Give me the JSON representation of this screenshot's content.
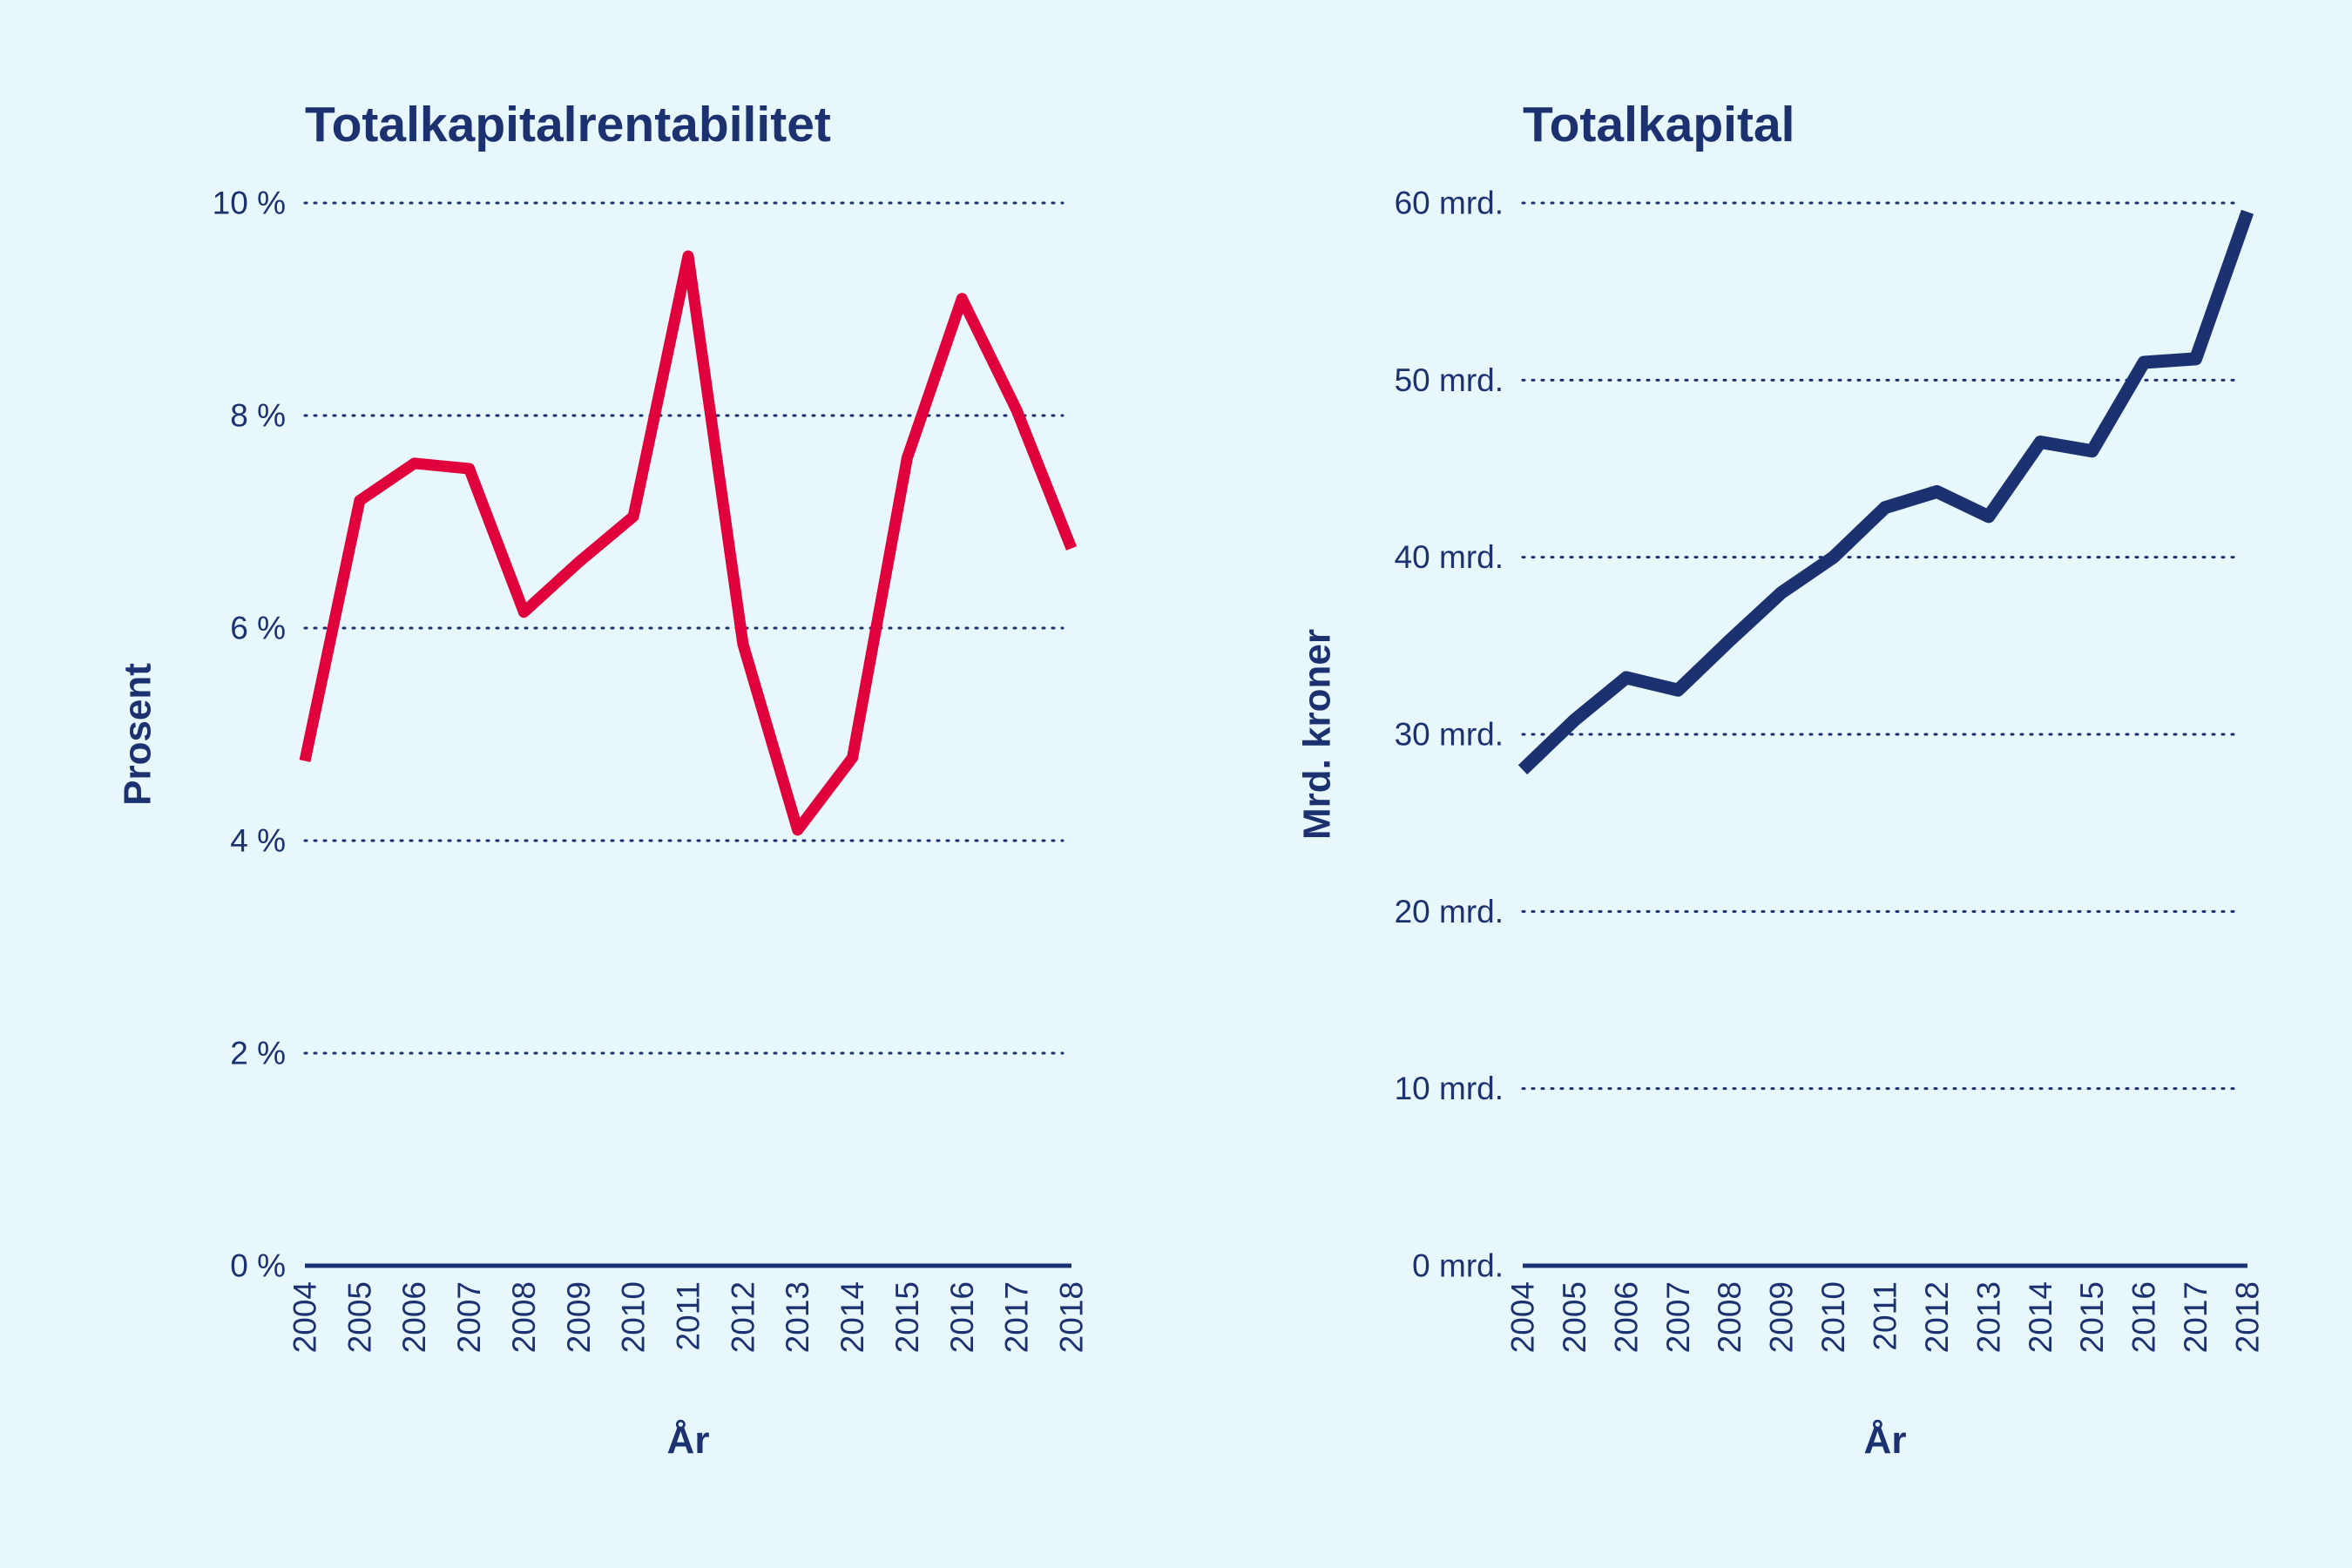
{
  "chart_data": [
    {
      "type": "line",
      "title": "Totalkapitalrentabilitet",
      "xlabel": "År",
      "ylabel": "Prosent",
      "x": [
        2004,
        2005,
        2006,
        2007,
        2008,
        2009,
        2010,
        2011,
        2012,
        2013,
        2014,
        2015,
        2016,
        2017,
        2018
      ],
      "y_tick_values": [
        0,
        2,
        4,
        6,
        8,
        10
      ],
      "y_tick_labels": [
        "0 %",
        "2 %",
        "4 %",
        "6 %",
        "8 %",
        "10 %"
      ],
      "ylim": [
        0,
        10
      ],
      "grid": true,
      "series": [
        {
          "color": "#e0003c",
          "values": [
            4.75,
            7.2,
            7.55,
            7.5,
            6.15,
            6.62,
            7.05,
            9.5,
            5.85,
            4.1,
            4.78,
            7.6,
            9.1,
            8.05,
            6.75
          ]
        }
      ]
    },
    {
      "type": "line",
      "title": "Totalkapital",
      "xlabel": "År",
      "ylabel": "Mrd. kroner",
      "x": [
        2004,
        2005,
        2006,
        2007,
        2008,
        2009,
        2010,
        2011,
        2012,
        2013,
        2014,
        2015,
        2016,
        2017,
        2018
      ],
      "y_tick_values": [
        0,
        10,
        20,
        30,
        40,
        50,
        60
      ],
      "y_tick_labels": [
        "0 mrd.",
        "10 mrd.",
        "20 mrd.",
        "30 mrd.",
        "40 mrd.",
        "50 mrd.",
        "60 mrd."
      ],
      "ylim": [
        0,
        60
      ],
      "grid": true,
      "series": [
        {
          "color": "#1b3170",
          "values": [
            28.0,
            30.8,
            33.2,
            32.5,
            35.3,
            38.0,
            40.0,
            42.8,
            43.7,
            42.3,
            46.5,
            46.0,
            51.0,
            51.2,
            59.5
          ]
        }
      ]
    }
  ]
}
